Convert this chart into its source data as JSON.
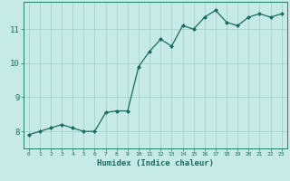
{
  "x": [
    0,
    1,
    2,
    3,
    4,
    5,
    6,
    7,
    8,
    9,
    10,
    11,
    12,
    13,
    14,
    15,
    16,
    17,
    18,
    19,
    20,
    21,
    22,
    23
  ],
  "y": [
    7.9,
    8.0,
    8.1,
    8.2,
    8.1,
    8.0,
    8.0,
    8.55,
    8.6,
    8.6,
    9.9,
    10.35,
    10.7,
    10.5,
    11.1,
    11.0,
    11.35,
    11.55,
    11.2,
    11.1,
    11.35,
    11.45,
    11.35,
    11.45
  ],
  "xlabel": "Humidex (Indice chaleur)",
  "yticks": [
    8,
    9,
    10,
    11
  ],
  "xticks": [
    0,
    1,
    2,
    3,
    4,
    5,
    6,
    7,
    8,
    9,
    10,
    11,
    12,
    13,
    14,
    15,
    16,
    17,
    18,
    19,
    20,
    21,
    22,
    23
  ],
  "ylim": [
    7.5,
    11.8
  ],
  "xlim": [
    -0.5,
    23.5
  ],
  "bg_color": "#c5eae7",
  "grid_color": "#a0ccc8",
  "line_color": "#1a6b5e",
  "marker_color": "#1a6b5e",
  "axis_color": "#2a7a6e",
  "tick_color": "#1a6b5e",
  "label_color": "#1a6b5e"
}
